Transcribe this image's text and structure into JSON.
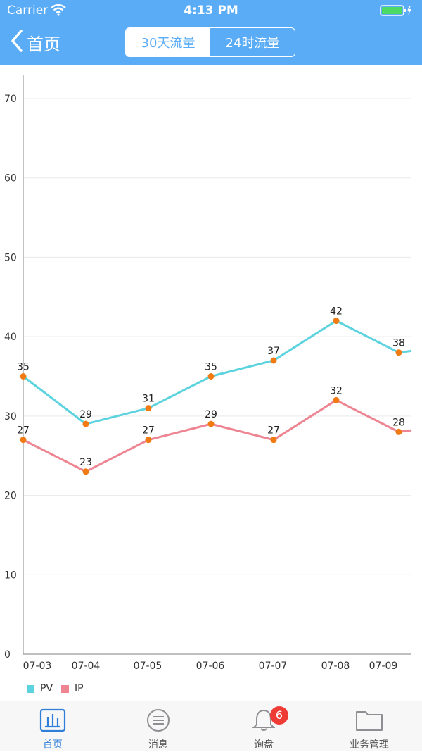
{
  "status_bar": {
    "carrier": "Carrier",
    "time": "4:13 PM"
  },
  "nav": {
    "back_label": "首页",
    "segments": [
      {
        "label": "30天流量",
        "active": true
      },
      {
        "label": "24时流量",
        "active": false
      }
    ]
  },
  "colors": {
    "header": "#5AACF6",
    "pv": "#5CD3DE",
    "ip": "#EE8592",
    "point": "#F27A12",
    "tab_active": "#2F7FD8"
  },
  "chart_data": {
    "type": "line",
    "categories": [
      "07-03",
      "07-04",
      "07-05",
      "07-06",
      "07-07",
      "07-08",
      "07-09"
    ],
    "series": [
      {
        "name": "PV",
        "values": [
          35,
          29,
          31,
          35,
          37,
          42,
          38
        ],
        "partial_next": 39
      },
      {
        "name": "IP",
        "values": [
          27,
          23,
          27,
          29,
          27,
          32,
          28
        ],
        "partial_next": 29
      }
    ],
    "y_ticks": [
      0,
      10,
      20,
      30,
      40,
      50,
      60,
      70
    ],
    "ylim": [
      0,
      72
    ],
    "grid": true,
    "legend": "bottom-left"
  },
  "tabbar": {
    "items": [
      {
        "label": "首页",
        "icon": "bar-chart-icon",
        "active": true
      },
      {
        "label": "消息",
        "icon": "message-icon",
        "active": false
      },
      {
        "label": "询盘",
        "icon": "bell-icon",
        "active": false,
        "badge": "6"
      },
      {
        "label": "业务管理",
        "icon": "folder-icon",
        "active": false
      }
    ]
  }
}
